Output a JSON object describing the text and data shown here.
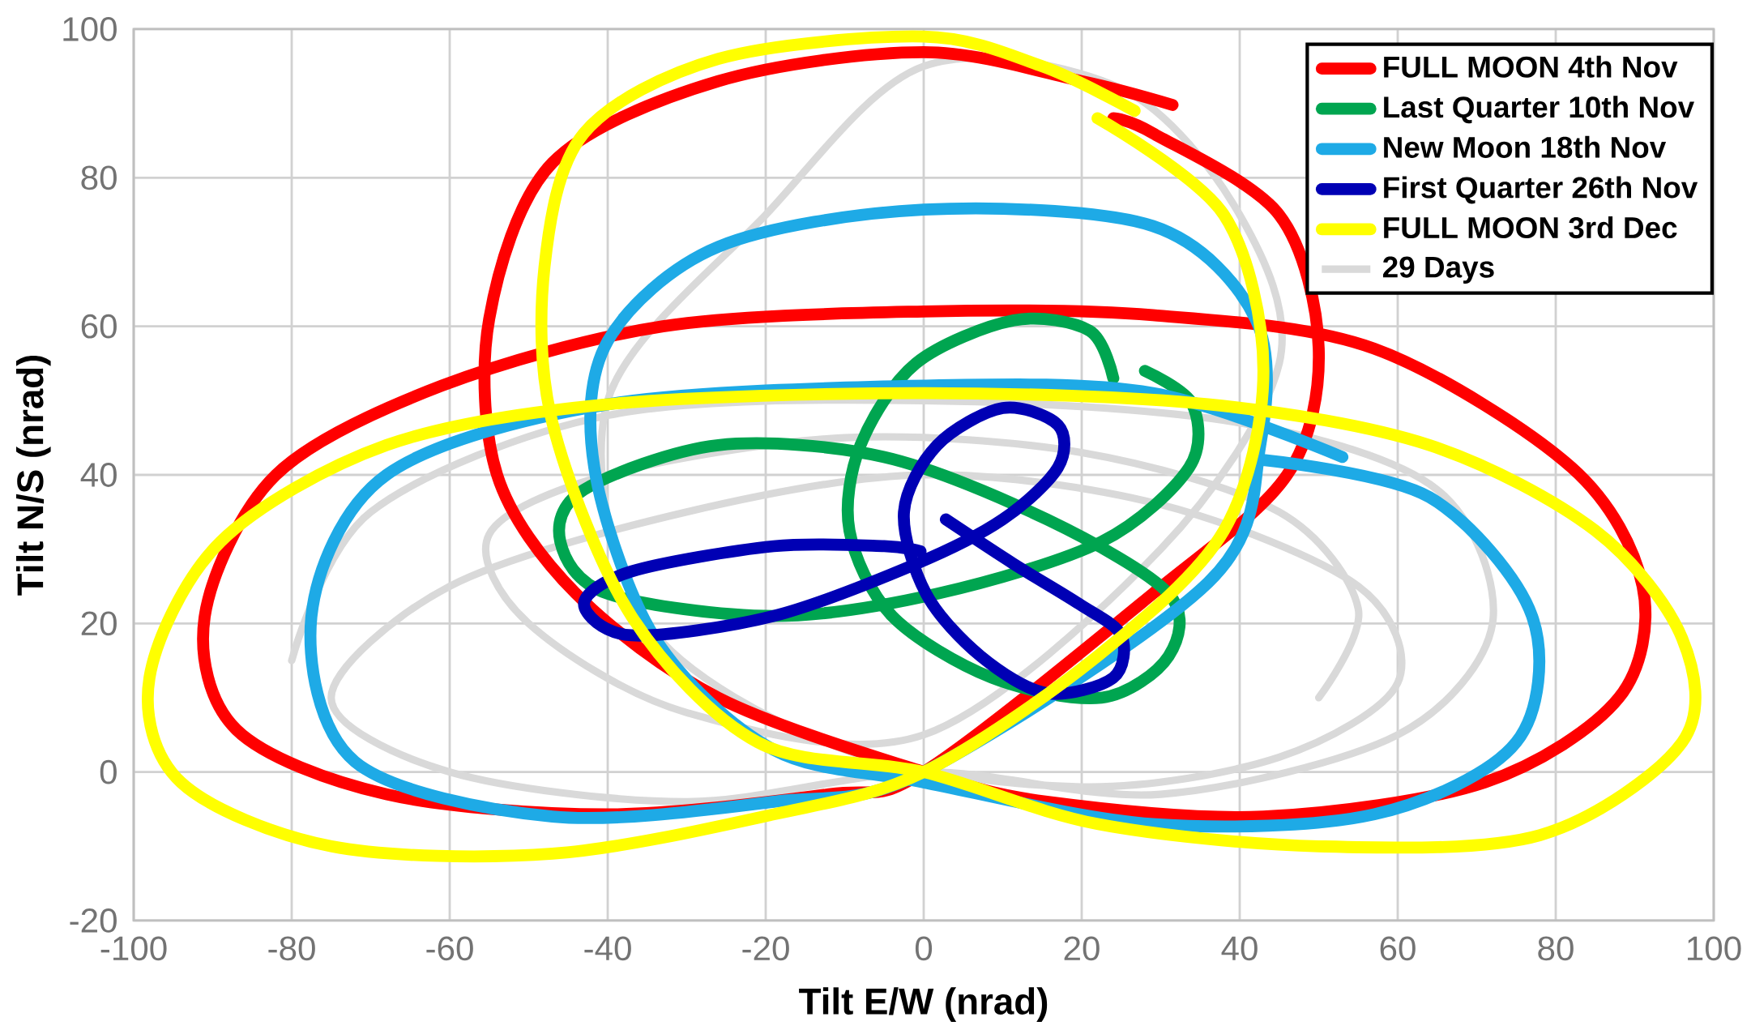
{
  "chart_data": {
    "type": "line",
    "xlabel": "Tilt E/W (nrad)",
    "ylabel": "Tilt N/S (nrad)",
    "xlim": [
      -100,
      100
    ],
    "ylim": [
      -20,
      100
    ],
    "xticks": [
      -100,
      -80,
      -60,
      -40,
      -20,
      0,
      20,
      40,
      60,
      80,
      100
    ],
    "yticks": [
      -20,
      0,
      20,
      40,
      60,
      80,
      100
    ],
    "grid": true,
    "legend": "top right",
    "marker": "none",
    "line_style": "solid",
    "series": [
      {
        "name": "FULL MOON 4th Nov",
        "color": "#ff0000",
        "x": [
          31.5,
          20,
          0,
          -26,
          -47,
          -55,
          -54,
          -44,
          -26,
          0,
          15.6,
          43,
          71,
          88,
          91,
          82,
          57,
          29,
          0,
          -33,
          -61,
          -82,
          -91,
          -87,
          -68,
          -40,
          -12,
          0,
          29,
          46,
          50,
          45,
          29,
          24
        ],
        "values": [
          89.8,
          93,
          96.9,
          93,
          82,
          61,
          40,
          24,
          10,
          0,
          -4,
          -6,
          -1.4,
          10,
          25,
          41,
          57,
          61.5,
          62,
          60,
          52,
          40,
          21,
          5.7,
          -3,
          -5.7,
          -3,
          0,
          24,
          40,
          57,
          75,
          86,
          88
        ]
      },
      {
        "name": "Last Quarter 10th Nov",
        "color": "#00a550",
        "x": [
          24,
          21,
          11.4,
          -1,
          -8,
          -9.4,
          -4,
          8.6,
          22.5,
          31,
          31,
          15.6,
          -5,
          -26,
          -43,
          -46,
          -40,
          -19,
          1.7,
          22.5,
          33.6,
          34,
          28
        ],
        "values": [
          53,
          59.4,
          60.8,
          55,
          44,
          32.5,
          21,
          12.7,
          10,
          15.6,
          24,
          34,
          42.4,
          44,
          38,
          31,
          24,
          21,
          24,
          31,
          41,
          49.5,
          54
        ]
      },
      {
        "name": "New Moon 18th Nov",
        "color": "#1eaae6",
        "x": [
          53,
          29,
          0,
          -40,
          -68,
          -77.5,
          -72,
          -47,
          -19,
          0,
          36,
          42.6,
          42,
          29,
          0,
          -26,
          -40,
          -41.7,
          -34,
          -19,
          0,
          29,
          57,
          75,
          77,
          64,
          43
        ],
        "values": [
          42.4,
          51,
          52,
          49.5,
          40,
          21,
          1.4,
          -6,
          -4,
          0,
          25.5,
          44,
          61,
          73.5,
          75.7,
          70.7,
          58,
          41,
          18,
          3,
          -1.4,
          -7,
          -5.7,
          4,
          21,
          37,
          42
        ]
      },
      {
        "name": "First Quarter 26th Nov",
        "color": "#0000b4",
        "x": [
          2.8,
          11.4,
          19.7,
          25,
          24,
          15.6,
          7.2,
          0.3,
          -2.5,
          1.7,
          10,
          17,
          17,
          10,
          -1,
          -19,
          -37,
          -43,
          -37,
          -19,
          -5,
          -0.4
        ],
        "values": [
          34,
          28,
          22.6,
          18.4,
          12.7,
          10.6,
          15.6,
          24,
          35,
          44,
          49,
          46.7,
          41,
          34,
          28,
          21,
          18.4,
          22.6,
          27,
          30.4,
          30.4,
          29.7
        ]
      },
      {
        "name": "FULL MOON 3rd Dec",
        "color": "#ffff00",
        "x": [
          26.7,
          15,
          0,
          -26,
          -43,
          -48,
          -47,
          -37,
          -21,
          0,
          22,
          50,
          78,
          96,
          96,
          85,
          64,
          36,
          0,
          -40,
          -68,
          -89,
          -98,
          -94,
          -75,
          -47,
          -19,
          0,
          22,
          38,
          43,
          38,
          22
        ],
        "values": [
          89,
          95,
          99,
          96,
          86,
          68,
          47,
          21,
          4,
          0,
          -7,
          -10,
          -8.5,
          4,
          18,
          32.5,
          44,
          49.5,
          51,
          49.5,
          44,
          31,
          12.7,
          -1.4,
          -10,
          -11,
          -5.7,
          0,
          15.6,
          32.5,
          54,
          75,
          88
        ]
      },
      {
        "name": "29 Days",
        "color": "#d9d9d9",
        "x": [
          -80,
          -70,
          -40,
          0,
          40,
          65,
          72,
          60,
          30,
          0,
          -30,
          -60,
          -75,
          -60,
          -30,
          0,
          30,
          55,
          60,
          45,
          20,
          -10,
          -35,
          -40,
          -20,
          0,
          25,
          40,
          45,
          30,
          0,
          -30,
          -50,
          -55,
          -40,
          -10,
          20,
          45,
          55,
          50
        ],
        "values": [
          15,
          35,
          48,
          50,
          47,
          38,
          20,
          5,
          -3,
          0,
          -4,
          0,
          10,
          25,
          35,
          40,
          36,
          25,
          12,
          2,
          -2,
          3,
          20,
          50,
          75,
          95,
          92,
          75,
          55,
          30,
          5,
          8,
          20,
          32,
          40,
          45,
          43,
          35,
          22,
          10
        ]
      }
    ]
  }
}
